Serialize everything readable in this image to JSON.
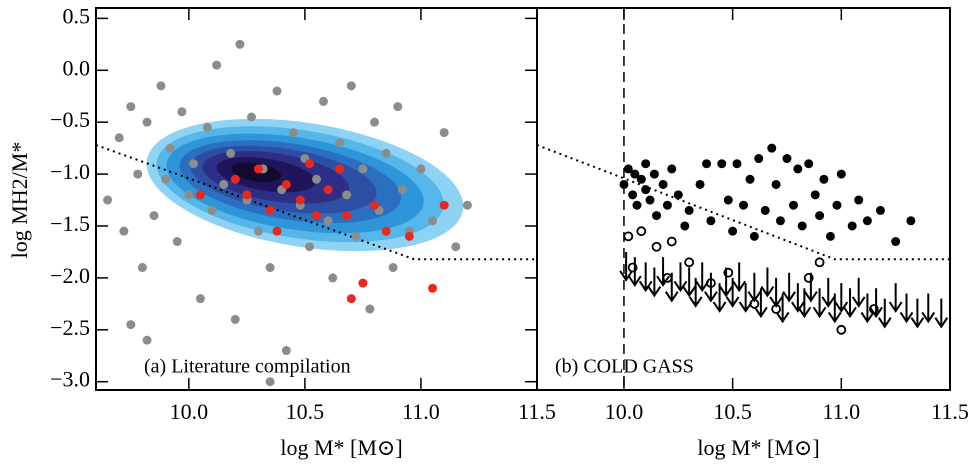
{
  "chart_data": [
    {
      "type": "scatter",
      "annotation": "(a) Literature compilation",
      "xlabel": "log M* [M⊙]",
      "ylabel": "log MH2/M*",
      "xlim": [
        9.6,
        11.5
      ],
      "ylim": [
        -3.08,
        0.6
      ],
      "xticks": [
        {
          "value": 10.0,
          "label": "10.0"
        },
        10.5,
        {
          "value": 11.0,
          "label": "11.0"
        },
        11.5
      ],
      "yticks": [
        {
          "value": 0.5,
          "label": "0.5"
        },
        {
          "value": 0.0,
          "label": "0.0"
        },
        {
          "value": -0.5,
          "label": "−0.5"
        },
        {
          "value": -1.0,
          "label": "−1.0"
        },
        {
          "value": -1.5,
          "label": "−1.5"
        },
        {
          "value": -2.0,
          "label": "−2.0"
        },
        {
          "value": -2.5,
          "label": "−2.5"
        },
        {
          "value": -3.0,
          "label": "−3.0"
        }
      ],
      "series": [
        {
          "color": "#8c8c8c",
          "marker": "filled",
          "x": [
            9.65,
            9.7,
            9.72,
            9.75,
            9.78,
            9.8,
            9.82,
            9.85,
            9.88,
            9.9,
            9.92,
            9.95,
            9.97,
            10.0,
            10.02,
            10.05,
            10.08,
            10.1,
            10.12,
            10.15,
            10.18,
            10.2,
            10.22,
            10.25,
            10.27,
            10.3,
            10.32,
            10.35,
            10.38,
            10.4,
            10.42,
            10.45,
            10.48,
            10.5,
            10.52,
            10.55,
            10.58,
            10.6,
            10.62,
            10.65,
            10.68,
            10.7,
            10.72,
            10.75,
            10.78,
            10.8,
            10.82,
            10.85,
            10.88,
            10.9,
            10.92,
            10.95,
            11.0,
            11.05,
            11.1,
            11.15,
            11.2,
            9.75,
            9.82,
            10.35
          ],
          "values": [
            -1.25,
            -0.65,
            -1.55,
            -0.35,
            -1.0,
            -1.9,
            -0.5,
            -1.4,
            -0.15,
            -1.05,
            -0.75,
            -1.65,
            -0.4,
            -1.2,
            -0.9,
            -2.2,
            -0.55,
            -1.35,
            0.05,
            -1.1,
            -0.8,
            -2.4,
            0.25,
            -1.25,
            -0.45,
            -1.55,
            -0.95,
            -1.9,
            -0.2,
            -1.15,
            -2.7,
            -0.6,
            -1.3,
            -0.85,
            -1.7,
            -1.05,
            -0.3,
            -1.45,
            -2.0,
            -0.7,
            -1.2,
            -0.15,
            -1.6,
            -0.95,
            -2.3,
            -0.5,
            -1.35,
            -0.8,
            -1.9,
            -0.35,
            -1.15,
            -1.55,
            -0.95,
            -1.45,
            -0.6,
            -1.7,
            -1.3,
            -2.45,
            -2.6,
            -3.0
          ]
        },
        {
          "color": "#e8281e",
          "marker": "filled",
          "x": [
            10.2,
            10.25,
            10.3,
            10.35,
            10.38,
            10.42,
            10.48,
            10.52,
            10.55,
            10.6,
            10.65,
            10.68,
            10.7,
            10.75,
            10.8,
            10.85,
            10.95,
            11.05,
            11.1,
            10.05
          ],
          "values": [
            -1.05,
            -1.2,
            -0.95,
            -1.35,
            -1.55,
            -1.1,
            -1.25,
            -0.9,
            -1.4,
            -1.15,
            -0.95,
            -1.4,
            -2.2,
            -2.05,
            -1.3,
            -1.55,
            -1.6,
            -2.1,
            -1.3,
            -1.2
          ]
        }
      ],
      "lines": [
        {
          "style": "dotted",
          "x": [
            9.6,
            10.97,
            11.5
          ],
          "y": [
            -0.72,
            -1.82,
            -1.82
          ]
        }
      ]
    },
    {
      "type": "scatter",
      "annotation": "(b) COLD GASS",
      "xlabel": "log M* [M⊙]",
      "xlim": [
        9.6,
        11.5
      ],
      "ylim": [
        -3.08,
        0.6
      ],
      "vline": 10.0,
      "xticks": [
        {
          "value": 10.0,
          "label": "10.0"
        },
        10.5,
        {
          "value": 11.0,
          "label": "11.0"
        },
        11.5
      ],
      "series": [
        {
          "color": "#000000",
          "marker": "filled",
          "x": [
            10.0,
            10.02,
            10.04,
            10.05,
            10.06,
            10.08,
            10.1,
            10.1,
            10.12,
            10.14,
            10.15,
            10.18,
            10.2,
            10.22,
            10.25,
            10.28,
            10.3,
            10.35,
            10.38,
            10.4,
            10.45,
            10.48,
            10.5,
            10.52,
            10.55,
            10.58,
            10.6,
            10.62,
            10.65,
            10.68,
            10.7,
            10.72,
            10.75,
            10.78,
            10.8,
            10.82,
            10.85,
            10.88,
            10.9,
            10.92,
            10.95,
            10.98,
            11.0,
            11.05,
            11.08,
            11.12,
            11.18,
            11.25,
            11.32
          ],
          "values": [
            -1.1,
            -0.95,
            -1.2,
            -1.0,
            -1.3,
            -1.05,
            -0.9,
            -1.15,
            -1.25,
            -1.0,
            -1.4,
            -1.1,
            -1.3,
            -0.95,
            -1.2,
            -1.5,
            -1.35,
            -1.1,
            -0.9,
            -1.45,
            -0.9,
            -1.25,
            -1.55,
            -0.9,
            -1.3,
            -1.05,
            -1.6,
            -0.85,
            -1.35,
            -0.75,
            -1.1,
            -1.45,
            -0.85,
            -1.3,
            -0.95,
            -1.5,
            -0.9,
            -1.2,
            -1.4,
            -1.05,
            -1.6,
            -1.3,
            -1.0,
            -1.5,
            -1.25,
            -1.45,
            -1.35,
            -1.65,
            -1.45
          ]
        },
        {
          "color": "#000000",
          "marker": "open",
          "x": [
            10.02,
            10.04,
            10.08,
            10.15,
            10.22,
            10.3,
            10.4,
            10.48,
            10.6,
            10.7,
            10.85,
            10.9,
            11.0,
            11.15,
            10.2
          ],
          "values": [
            -1.6,
            -1.9,
            -1.55,
            -1.7,
            -1.65,
            -1.85,
            -2.05,
            -1.95,
            -2.25,
            -2.3,
            -2.0,
            -1.85,
            -2.5,
            -2.3,
            -2.0
          ]
        },
        {
          "color": "#000000",
          "marker": "arrow",
          "x": [
            10.01,
            10.05,
            10.1,
            10.14,
            10.18,
            10.22,
            10.26,
            10.3,
            10.33,
            10.36,
            10.4,
            10.44,
            10.47,
            10.5,
            10.53,
            10.56,
            10.6,
            10.63,
            10.66,
            10.7,
            10.73,
            10.76,
            10.8,
            10.83,
            10.86,
            10.9,
            10.94,
            10.97,
            11.0,
            11.04,
            11.08,
            11.12,
            11.16,
            11.2,
            11.25,
            11.3,
            11.35,
            11.4,
            11.46
          ],
          "values": [
            -1.75,
            -1.8,
            -1.85,
            -1.9,
            -1.8,
            -1.95,
            -1.85,
            -1.9,
            -2.0,
            -1.85,
            -1.95,
            -2.05,
            -1.9,
            -2.0,
            -1.85,
            -2.05,
            -1.95,
            -2.1,
            -1.9,
            -2.0,
            -2.15,
            -1.95,
            -2.05,
            -2.1,
            -1.95,
            -2.1,
            -2.0,
            -2.15,
            -2.05,
            -2.1,
            -2.0,
            -2.15,
            -2.1,
            -2.2,
            -2.05,
            -2.15,
            -2.2,
            -2.15,
            -2.2
          ]
        }
      ],
      "lines": [
        {
          "style": "dotted",
          "x": [
            9.6,
            10.97,
            11.5
          ],
          "y": [
            -0.72,
            -1.82,
            -1.82
          ]
        }
      ]
    }
  ]
}
